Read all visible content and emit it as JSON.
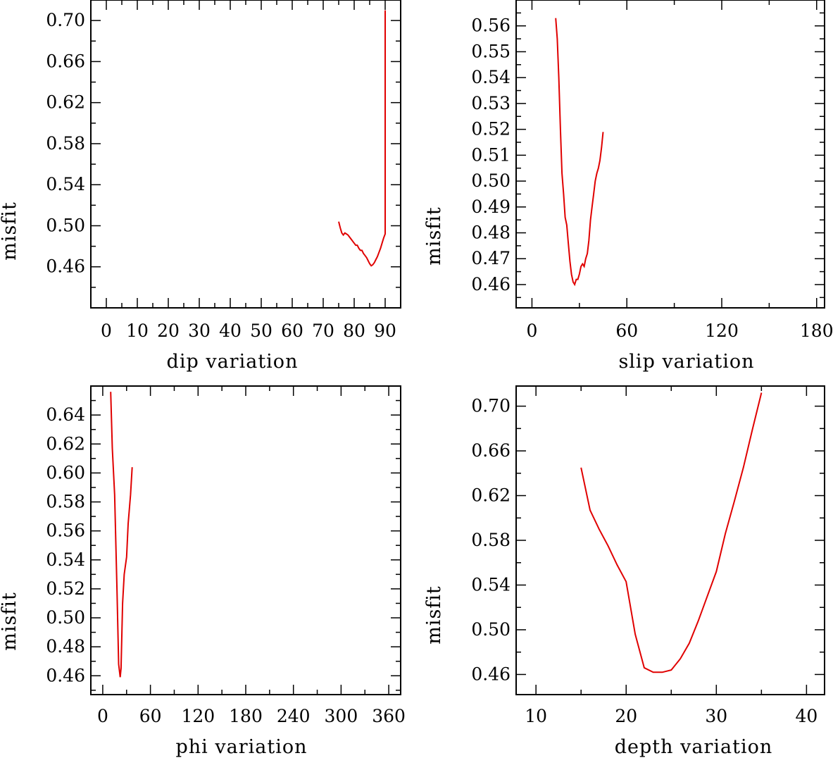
{
  "chart_data": [
    {
      "type": "line",
      "id": "dip",
      "xlabel": "dip    variation",
      "ylabel": "misfit",
      "xlim": [
        -5,
        95
      ],
      "ylim": [
        0.42,
        0.72
      ],
      "xticks": [
        0,
        10,
        20,
        30,
        40,
        50,
        60,
        70,
        80,
        90
      ],
      "xtick_labels": [
        "0",
        "10",
        "20",
        "30",
        "40",
        "50",
        "60",
        "70",
        "80",
        "90"
      ],
      "yticks": [
        0.46,
        0.5,
        0.54,
        0.58,
        0.62,
        0.66,
        0.7
      ],
      "ytick_labels": [
        "0.46",
        "0.50",
        "0.54",
        "0.58",
        "0.62",
        "0.66",
        "0.70"
      ],
      "series": [
        {
          "color": "#e00000",
          "x": [
            75,
            75.5,
            76,
            76.5,
            77,
            77.5,
            78,
            78.5,
            79,
            79.5,
            80,
            80.5,
            81,
            81.5,
            82,
            82.5,
            83,
            83.5,
            84,
            84.5,
            85,
            85.5,
            86,
            86.5,
            87,
            87.5,
            88,
            88.5,
            89,
            89.5,
            90,
            90
          ],
          "y": [
            0.504,
            0.498,
            0.493,
            0.491,
            0.493,
            0.492,
            0.491,
            0.489,
            0.487,
            0.485,
            0.483,
            0.481,
            0.481,
            0.478,
            0.476,
            0.476,
            0.473,
            0.471,
            0.469,
            0.466,
            0.463,
            0.461,
            0.462,
            0.464,
            0.467,
            0.47,
            0.474,
            0.478,
            0.483,
            0.488,
            0.492,
            0.71
          ]
        }
      ]
    },
    {
      "type": "line",
      "id": "slip",
      "xlabel": "slip   variation",
      "ylabel": "misfit",
      "xlim": [
        -10,
        185
      ],
      "ylim": [
        0.451,
        0.57
      ],
      "xticks": [
        0,
        60,
        120,
        180
      ],
      "xtick_labels": [
        "0",
        "60",
        "120",
        "180"
      ],
      "yticks": [
        0.46,
        0.47,
        0.48,
        0.49,
        0.5,
        0.51,
        0.52,
        0.53,
        0.54,
        0.55,
        0.56
      ],
      "ytick_labels": [
        "0.46",
        "0.47",
        "0.48",
        "0.49",
        "0.50",
        "0.51",
        "0.52",
        "0.53",
        "0.54",
        "0.55",
        "0.56"
      ],
      "series": [
        {
          "color": "#e00000",
          "x": [
            15,
            16,
            17,
            18,
            19,
            20,
            21,
            22,
            23,
            24,
            25,
            26,
            27,
            28,
            29,
            30,
            31,
            32,
            33,
            34,
            35,
            36,
            37,
            38,
            39,
            40,
            41,
            42,
            43,
            44,
            45
          ],
          "y": [
            0.563,
            0.555,
            0.54,
            0.52,
            0.503,
            0.495,
            0.486,
            0.483,
            0.476,
            0.469,
            0.464,
            0.461,
            0.46,
            0.462,
            0.462,
            0.464,
            0.467,
            0.468,
            0.467,
            0.47,
            0.472,
            0.477,
            0.485,
            0.49,
            0.495,
            0.5,
            0.503,
            0.505,
            0.508,
            0.513,
            0.519
          ]
        }
      ]
    },
    {
      "type": "line",
      "id": "phi",
      "xlabel": "phi    variation",
      "ylabel": "misfit",
      "xlim": [
        -15,
        375
      ],
      "ylim": [
        0.447,
        0.66
      ],
      "xticks": [
        0,
        60,
        120,
        180,
        240,
        300,
        360
      ],
      "xtick_labels": [
        "0",
        "60",
        "120",
        "180",
        "240",
        "300",
        "360"
      ],
      "yticks": [
        0.46,
        0.48,
        0.5,
        0.52,
        0.54,
        0.56,
        0.58,
        0.6,
        0.62,
        0.64
      ],
      "ytick_labels": [
        "0.46",
        "0.48",
        "0.50",
        "0.52",
        "0.54",
        "0.56",
        "0.58",
        "0.60",
        "0.62",
        "0.64"
      ],
      "series": [
        {
          "color": "#e00000",
          "x": [
            10,
            12,
            15,
            18,
            20,
            22,
            23,
            25,
            27,
            30,
            32,
            35,
            37
          ],
          "y": [
            0.656,
            0.617,
            0.585,
            0.518,
            0.468,
            0.459,
            0.465,
            0.51,
            0.53,
            0.542,
            0.565,
            0.585,
            0.604
          ]
        }
      ]
    },
    {
      "type": "line",
      "id": "depth",
      "xlabel": "depth  variation",
      "ylabel": "misfit",
      "xlim": [
        7.8,
        42
      ],
      "ylim": [
        0.442,
        0.718
      ],
      "xticks": [
        10,
        20,
        30,
        40
      ],
      "xtick_labels": [
        "10",
        "20",
        "30",
        "40"
      ],
      "yticks": [
        0.46,
        0.5,
        0.54,
        0.58,
        0.62,
        0.66,
        0.7
      ],
      "ytick_labels": [
        "0.46",
        "0.50",
        "0.54",
        "0.58",
        "0.62",
        "0.66",
        "0.70"
      ],
      "series": [
        {
          "color": "#e00000",
          "x": [
            15,
            16,
            17,
            18,
            19,
            20,
            21,
            22,
            23,
            24,
            25,
            26,
            27,
            28,
            29,
            30,
            31,
            32,
            33,
            34,
            35
          ],
          "y": [
            0.645,
            0.607,
            0.59,
            0.575,
            0.558,
            0.543,
            0.496,
            0.466,
            0.462,
            0.462,
            0.464,
            0.474,
            0.488,
            0.508,
            0.53,
            0.552,
            0.586,
            0.615,
            0.645,
            0.679,
            0.712
          ]
        }
      ]
    }
  ]
}
